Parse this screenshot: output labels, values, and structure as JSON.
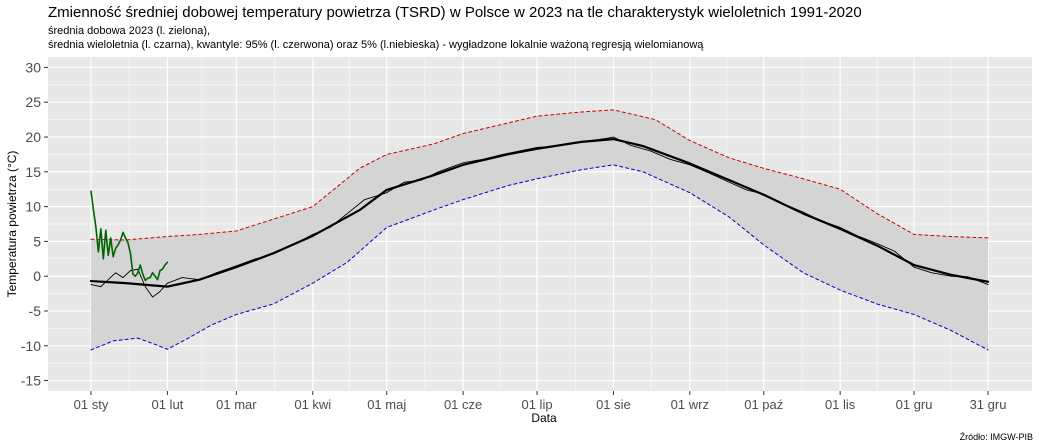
{
  "title": "Zmienność średniej dobowej temperatury powietrza (TSRD) w Polsce w 2023 na tle charakterystyk wieloletnich 1991-2020",
  "subtitle_1": "średnia dobowa 2023 (l. zielona),",
  "subtitle_2": "średnia wieloletnia (l. czarna), kwantyle: 95% (l. czerwona) oraz 5% (l.niebieska) - wygładzone lokalnie ważoną regresją wielomianową",
  "source": "Źródło: IMGW-PIB",
  "chart_data": {
    "type": "line",
    "xlabel": "Data",
    "ylabel": "Temperatura powietrza (°C)",
    "xlim": [
      1,
      365
    ],
    "ylim": [
      -16.5,
      31.5
    ],
    "grid": true,
    "background": "#e8e8e8",
    "band_color": "#d4d4d4",
    "x_ticks": [
      {
        "day": 1,
        "label": "01 sty"
      },
      {
        "day": 32,
        "label": "01 lut"
      },
      {
        "day": 60,
        "label": "01 mar"
      },
      {
        "day": 91,
        "label": "01 kwi"
      },
      {
        "day": 121,
        "label": "01 maj"
      },
      {
        "day": 152,
        "label": "01 cze"
      },
      {
        "day": 182,
        "label": "01 lip"
      },
      {
        "day": 213,
        "label": "01 sie"
      },
      {
        "day": 244,
        "label": "01 wrz"
      },
      {
        "day": 274,
        "label": "01 paź"
      },
      {
        "day": 305,
        "label": "01 lis"
      },
      {
        "day": 335,
        "label": "01 gru"
      },
      {
        "day": 365,
        "label": "31 gru"
      }
    ],
    "y_ticks": [
      -15,
      -10,
      -5,
      0,
      5,
      10,
      15,
      20,
      25,
      30
    ],
    "series": [
      {
        "key": "q95",
        "color": "#cc0000",
        "dash": true,
        "x": [
          1,
          15,
          32,
          45,
          60,
          91,
          110,
          121,
          140,
          152,
          170,
          182,
          200,
          213,
          230,
          244,
          260,
          274,
          290,
          305,
          320,
          335,
          350,
          365
        ],
        "y": [
          5.3,
          5.2,
          5.7,
          6.0,
          6.5,
          10.0,
          15.5,
          17.5,
          19.0,
          20.5,
          22.0,
          23.0,
          23.6,
          23.9,
          22.5,
          19.5,
          17.0,
          15.5,
          14.0,
          12.5,
          9.0,
          6.0,
          5.7,
          5.5
        ]
      },
      {
        "key": "q05",
        "color": "#0000cc",
        "dash": true,
        "x": [
          1,
          10,
          20,
          27,
          32,
          40,
          50,
          60,
          75,
          91,
          105,
          121,
          140,
          152,
          170,
          182,
          200,
          213,
          225,
          244,
          260,
          274,
          290,
          305,
          320,
          335,
          350,
          365
        ],
        "y": [
          -10.6,
          -9.3,
          -8.9,
          -9.8,
          -10.5,
          -9.0,
          -7.0,
          -5.5,
          -4.0,
          -1.0,
          2.0,
          7.0,
          9.5,
          11.0,
          13.0,
          14.0,
          15.3,
          16.0,
          15.0,
          12.0,
          8.5,
          4.5,
          0.5,
          -2.0,
          -4.0,
          -5.5,
          -7.8,
          -10.6
        ]
      },
      {
        "key": "mean",
        "color": "#000000",
        "width": 2.2,
        "x": [
          1,
          15,
          32,
          45,
          60,
          75,
          91,
          110,
          121,
          140,
          152,
          170,
          182,
          200,
          213,
          225,
          244,
          260,
          274,
          290,
          305,
          320,
          335,
          350,
          365
        ],
        "y": [
          -0.7,
          -1.0,
          -1.5,
          -0.5,
          1.3,
          3.3,
          5.8,
          9.5,
          12.4,
          14.5,
          16.0,
          17.5,
          18.3,
          19.3,
          19.7,
          18.7,
          16.2,
          13.8,
          11.7,
          9.0,
          6.8,
          4.4,
          1.6,
          0.2,
          -0.8
        ]
      },
      {
        "key": "daily-mean",
        "color": "#000000",
        "width": 0.9,
        "x": [
          1,
          5,
          8,
          11,
          14,
          17,
          20,
          23,
          26,
          29,
          32,
          38,
          45,
          52,
          60,
          67,
          75,
          83,
          91,
          98,
          105,
          112,
          121,
          128,
          135,
          142,
          152,
          160,
          168,
          175,
          182,
          190,
          197,
          204,
          210,
          213,
          220,
          228,
          236,
          244,
          252,
          260,
          267,
          274,
          282,
          290,
          297,
          305,
          312,
          320,
          327,
          335,
          342,
          350,
          357,
          365
        ],
        "y": [
          -1.2,
          -1.5,
          -0.5,
          0.5,
          -0.2,
          0.8,
          1.0,
          -1.5,
          -3.0,
          -2.2,
          -1.0,
          -0.2,
          -0.5,
          0.5,
          1.5,
          2.4,
          3.2,
          4.5,
          6.0,
          7.0,
          9.0,
          11.0,
          12.0,
          13.5,
          13.8,
          15.0,
          16.3,
          16.8,
          17.5,
          18.0,
          18.5,
          18.7,
          19.2,
          19.5,
          19.8,
          20.0,
          18.8,
          18.0,
          16.8,
          16.0,
          14.8,
          13.5,
          12.4,
          11.8,
          10.4,
          9.2,
          8.0,
          7.0,
          5.8,
          4.7,
          3.6,
          1.3,
          0.5,
          0.0,
          -0.1,
          -1.2
        ]
      },
      {
        "key": "daily-2023",
        "color": "#006400",
        "width": 1.6,
        "x": [
          1,
          2,
          3,
          4,
          5,
          6,
          7,
          8,
          9,
          10,
          11,
          12,
          13,
          14,
          15,
          16,
          17,
          18,
          19,
          20,
          21,
          22,
          23,
          24,
          25,
          26,
          27,
          28,
          29,
          30,
          31,
          32
        ],
        "y": [
          12.2,
          9.5,
          7.0,
          3.5,
          6.8,
          2.5,
          6.6,
          3.0,
          5.5,
          2.8,
          4.0,
          4.5,
          5.2,
          6.3,
          5.5,
          4.8,
          3.3,
          0.3,
          0.0,
          0.5,
          1.6,
          0.3,
          -0.6,
          -0.3,
          -0.2,
          0.5,
          0.0,
          -0.5,
          0.8,
          1.0,
          1.6,
          2.0
        ]
      }
    ]
  }
}
